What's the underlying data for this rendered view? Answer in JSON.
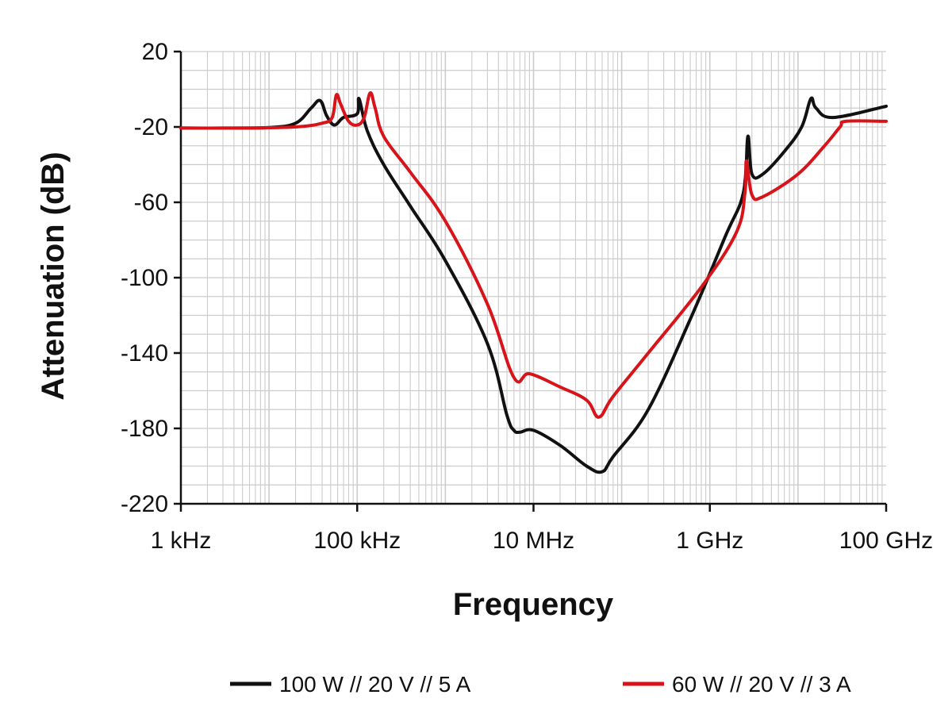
{
  "chart_data": {
    "type": "line",
    "xlabel": "Frequency",
    "ylabel": "Attenuation (dB)",
    "x_scale": "log",
    "x_unit": "Hz",
    "xlim": [
      1000,
      100000000000
    ],
    "ylim": [
      -220,
      20
    ],
    "x_ticks": [
      {
        "value": 1000,
        "label": "1 kHz"
      },
      {
        "value": 100000,
        "label": "100 kHz"
      },
      {
        "value": 10000000,
        "label": "10 MHz"
      },
      {
        "value": 1000000000,
        "label": "1 GHz"
      },
      {
        "value": 100000000000,
        "label": "100 GHz"
      }
    ],
    "y_ticks": [
      20,
      -20,
      -60,
      -100,
      -140,
      -180,
      -220
    ],
    "grid": true,
    "legend_position": "bottom",
    "colors": {
      "series_1": "#111111",
      "series_2": "#d7141a",
      "grid": "#cccccc",
      "axis": "#111111"
    },
    "series": [
      {
        "name": "100 W // 20 V // 5 A",
        "color": "#111111",
        "points": [
          [
            1000,
            -20.6
          ],
          [
            3000,
            -20.6
          ],
          [
            10000,
            -20.3
          ],
          [
            20000,
            -18
          ],
          [
            30000,
            -10
          ],
          [
            38000,
            -6
          ],
          [
            45000,
            -14
          ],
          [
            55000,
            -19
          ],
          [
            70000,
            -15
          ],
          [
            100000,
            -13
          ],
          [
            105000,
            -5
          ],
          [
            130000,
            -22
          ],
          [
            200000,
            -40
          ],
          [
            400000,
            -62
          ],
          [
            1000000,
            -91
          ],
          [
            3000000,
            -135
          ],
          [
            5000000,
            -173
          ],
          [
            6000000,
            -181
          ],
          [
            7000000,
            -182
          ],
          [
            10000000,
            -181
          ],
          [
            20000000,
            -189
          ],
          [
            40000000,
            -200
          ],
          [
            60000000,
            -203
          ],
          [
            80000000,
            -195
          ],
          [
            200000000,
            -170
          ],
          [
            600000000,
            -122
          ],
          [
            1500000000,
            -78
          ],
          [
            2400000000,
            -55
          ],
          [
            2700000000,
            -25
          ],
          [
            3000000000,
            -45
          ],
          [
            4000000000,
            -45
          ],
          [
            7000000000,
            -33
          ],
          [
            11000000000,
            -20
          ],
          [
            14000000000,
            -5
          ],
          [
            16000000000,
            -10
          ],
          [
            25000000000,
            -15
          ],
          [
            100000000000,
            -9
          ]
        ]
      },
      {
        "name": "60 W // 20 V // 3 A",
        "color": "#d7141a",
        "points": [
          [
            1000,
            -20.6
          ],
          [
            5000,
            -20.6
          ],
          [
            20000,
            -20
          ],
          [
            40000,
            -18
          ],
          [
            52000,
            -15
          ],
          [
            58000,
            -3
          ],
          [
            65000,
            -8
          ],
          [
            80000,
            -17
          ],
          [
            100000,
            -19
          ],
          [
            120000,
            -15
          ],
          [
            140000,
            -2
          ],
          [
            160000,
            -10
          ],
          [
            200000,
            -25
          ],
          [
            400000,
            -44
          ],
          [
            1000000,
            -70
          ],
          [
            3000000,
            -114
          ],
          [
            6000000,
            -153
          ],
          [
            9000000,
            -151
          ],
          [
            20000000,
            -158
          ],
          [
            40000000,
            -165
          ],
          [
            55000000,
            -174
          ],
          [
            80000000,
            -163
          ],
          [
            200000000,
            -140
          ],
          [
            800000000,
            -105
          ],
          [
            2000000000,
            -76
          ],
          [
            2500000000,
            -55
          ],
          [
            2600000000,
            -38
          ],
          [
            3000000000,
            -56
          ],
          [
            4000000000,
            -57
          ],
          [
            10000000000,
            -45
          ],
          [
            20000000000,
            -30
          ],
          [
            30000000000,
            -20
          ],
          [
            35000000000,
            -17
          ],
          [
            100000000000,
            -17
          ]
        ]
      }
    ]
  }
}
